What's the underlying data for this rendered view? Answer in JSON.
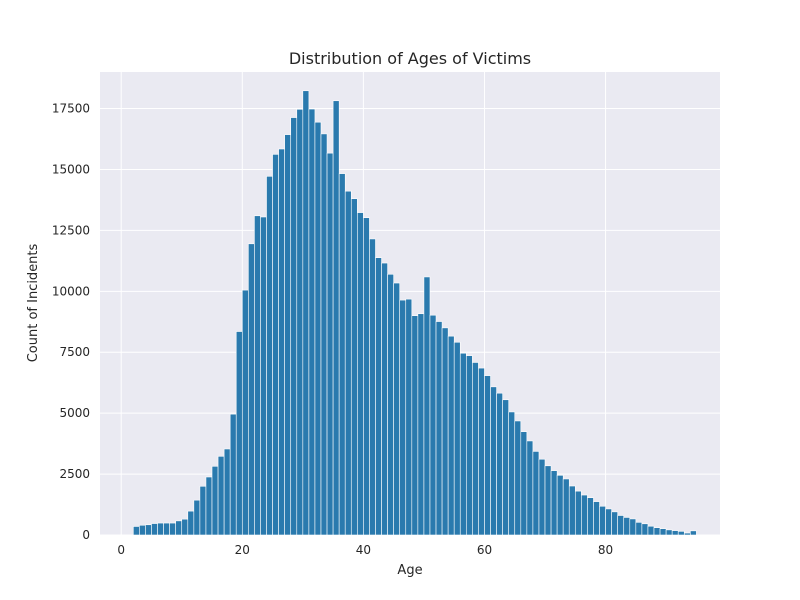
{
  "chart_data": {
    "type": "bar",
    "title": "Distribution of Ages of Victims",
    "xlabel": "Age",
    "ylabel": "Count of Incidents",
    "xlim": [
      -3.5,
      98.9
    ],
    "ylim": [
      0,
      19000
    ],
    "xticks": [
      0,
      20,
      40,
      60,
      80
    ],
    "yticks": [
      0,
      2500,
      5000,
      7500,
      10000,
      12500,
      15000,
      17500
    ],
    "grid": true,
    "bin_start": 2,
    "bin_width": 1,
    "values": [
      350,
      400,
      420,
      470,
      490,
      490,
      490,
      580,
      650,
      980,
      1430,
      2000,
      2380,
      2820,
      3230,
      3530,
      4960,
      8350,
      10050,
      11950,
      13100,
      13050,
      14720,
      15620,
      15840,
      16430,
      17130,
      17470,
      18230,
      17480,
      16940,
      16460,
      15670,
      17820,
      14830,
      14110,
      13800,
      13230,
      13020,
      12150,
      11380,
      11160,
      10700,
      10340,
      9640,
      9680,
      9000,
      9080,
      10590,
      9020,
      8760,
      8500,
      8160,
      7910,
      7460,
      7360,
      7080,
      6850,
      6540,
      6080,
      5820,
      5550,
      5050,
      4680,
      4240,
      3860,
      3430,
      3110,
      2840,
      2640,
      2450,
      2300,
      2010,
      1800,
      1640,
      1530,
      1370,
      1180,
      1070,
      950,
      800,
      720,
      660,
      520,
      460,
      360,
      300,
      260,
      210,
      180,
      150,
      80,
      170
    ],
    "colors": {
      "bar": "#2a7aae",
      "plot_bg": "#eaeaf2",
      "grid": "#ffffff",
      "text": "#262626"
    }
  }
}
